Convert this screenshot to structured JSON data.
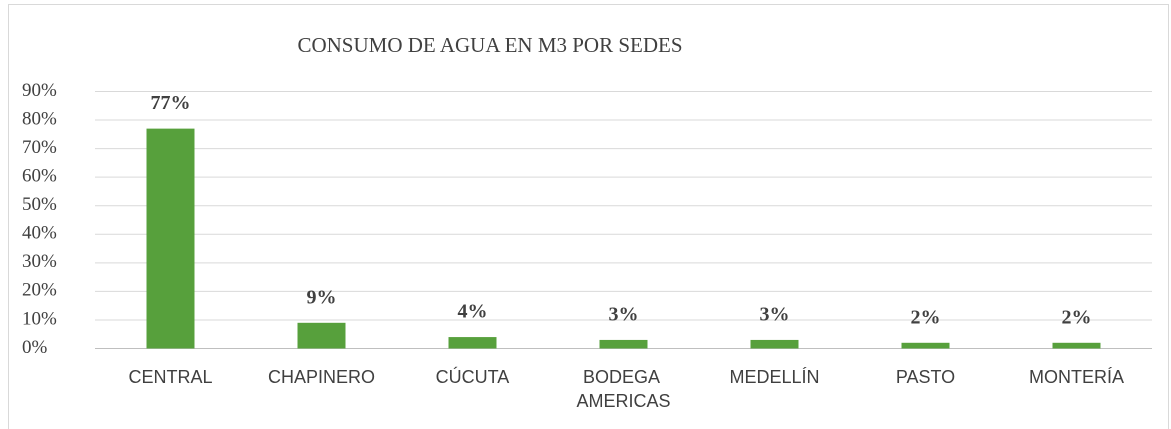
{
  "chart_data": {
    "type": "bar",
    "title": "CONSUMO DE AGUA EN M3 POR SEDES",
    "categories": [
      "CENTRAL",
      "CHAPINERO",
      "CÚCUTA",
      "BODEGA AMERICAS",
      "MEDELLÍN",
      "PASTO",
      "MONTERÍA"
    ],
    "values": [
      77,
      9,
      4,
      3,
      3,
      2,
      2
    ],
    "value_labels": [
      "77%",
      "9%",
      "4%",
      "3%",
      "3%",
      "2%",
      "2%"
    ],
    "color": "#57a03c",
    "ylim": [
      0,
      90
    ],
    "yticks": [
      {
        "value": 0,
        "label": "0%"
      },
      {
        "value": 10,
        "label": "10%"
      },
      {
        "value": 20,
        "label": "20%"
      },
      {
        "value": 30,
        "label": "30%"
      },
      {
        "value": 40,
        "label": "40%"
      },
      {
        "value": 50,
        "label": "50%"
      },
      {
        "value": 60,
        "label": "60%"
      },
      {
        "value": 70,
        "label": "70%"
      },
      {
        "value": 80,
        "label": "80%"
      },
      {
        "value": 90,
        "label": "90%"
      }
    ],
    "grid": true
  }
}
